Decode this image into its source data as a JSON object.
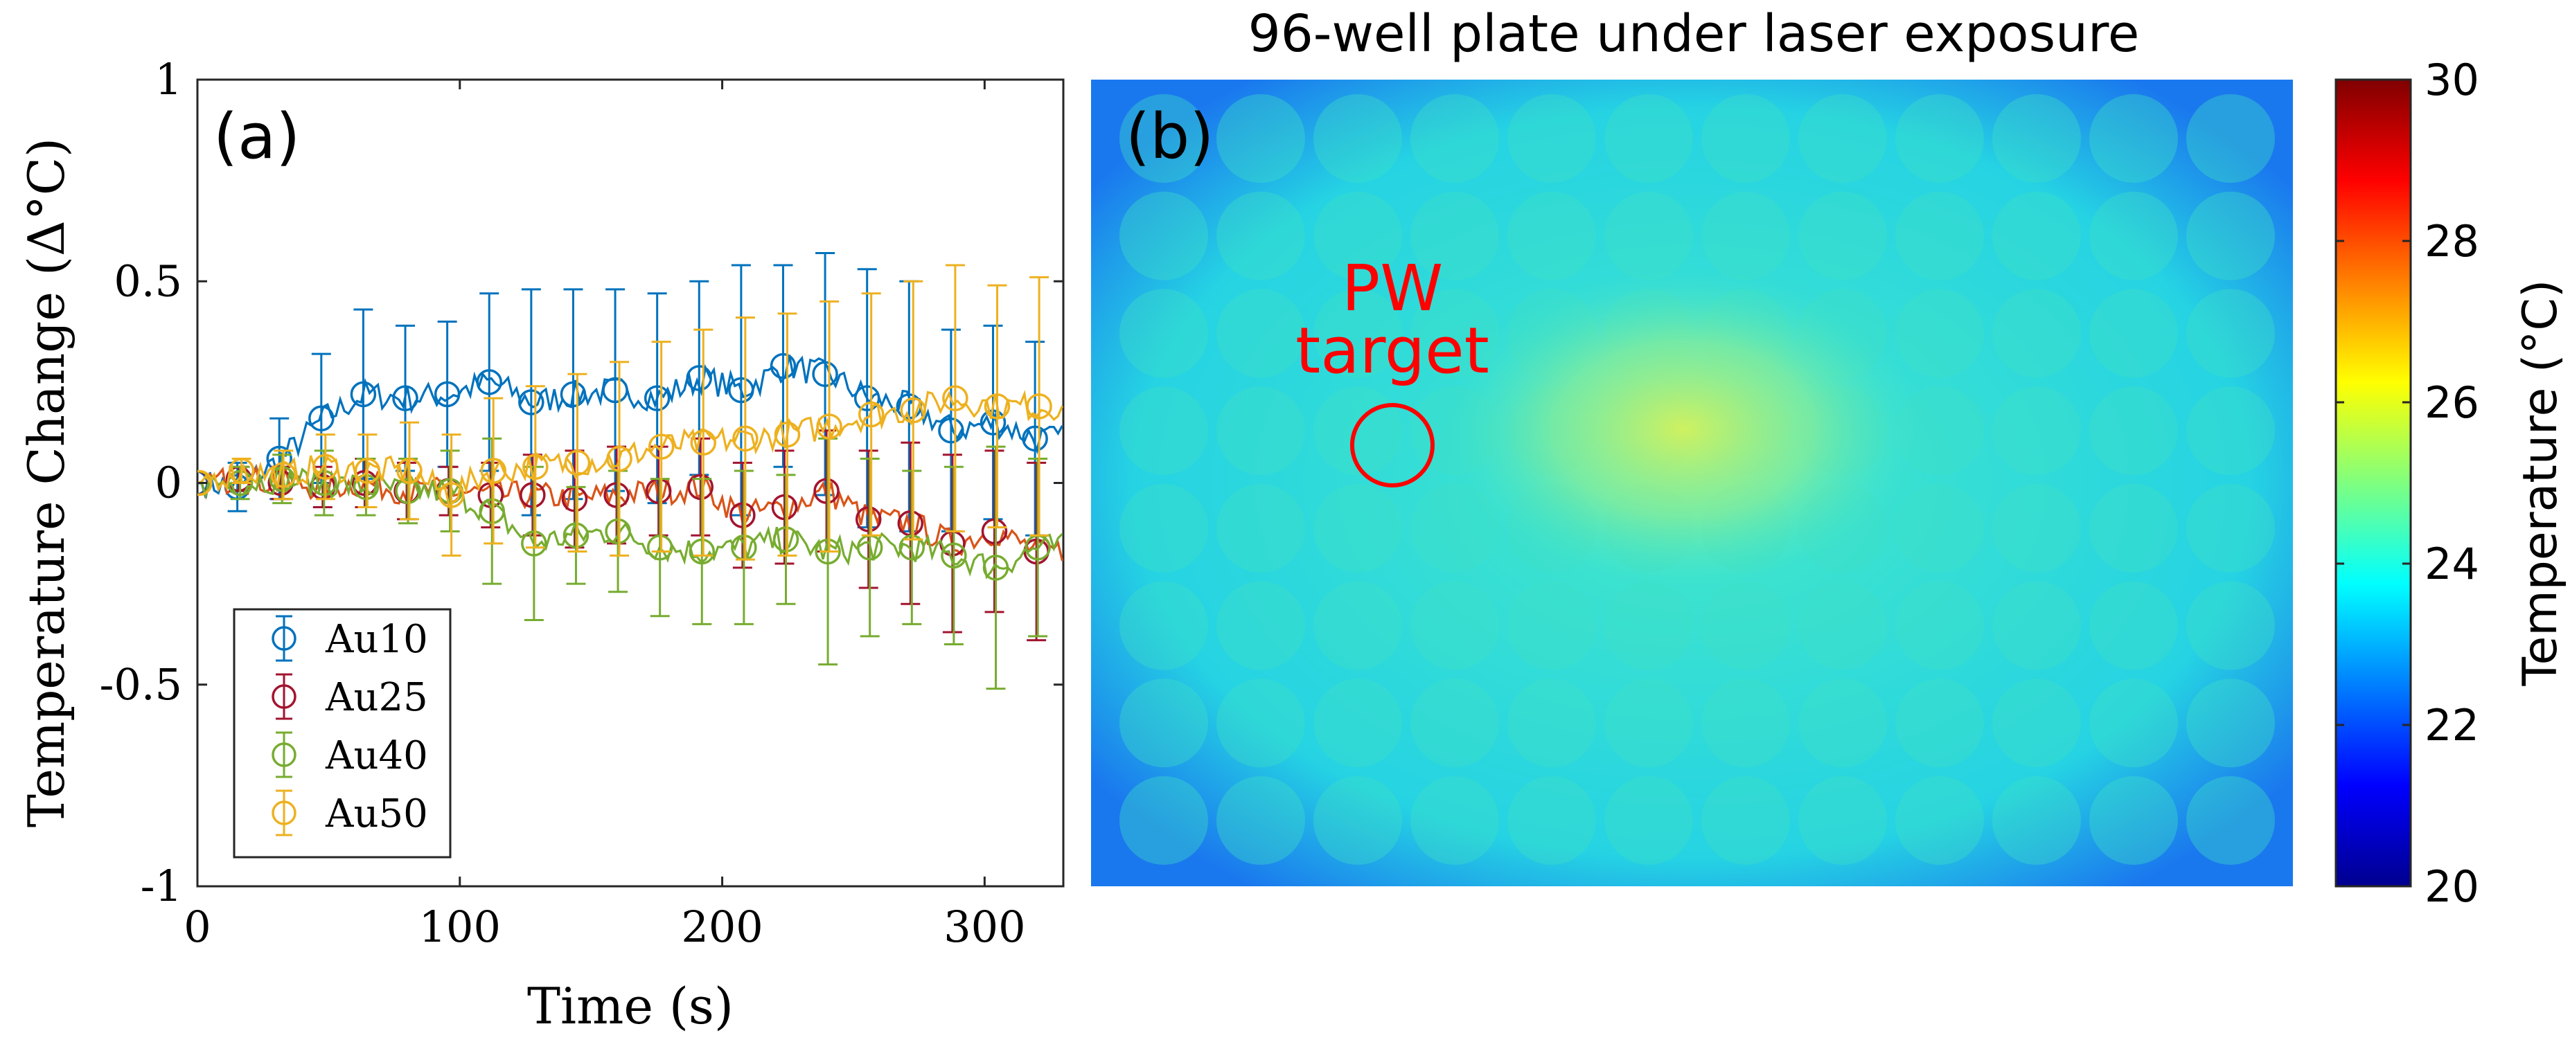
{
  "chart_data": [
    {
      "type": "line",
      "panel_label": "(a)",
      "xlabel": "Time (s)",
      "ylabel": "Temperature Change (Δ°C)",
      "xlim": [
        0,
        330
      ],
      "ylim": [
        -1,
        1
      ],
      "xticks": [
        0,
        100,
        200,
        300
      ],
      "xtick_labels": [
        "0",
        "100",
        "200",
        "300"
      ],
      "yticks": [
        -1,
        -0.5,
        0,
        0.5,
        1
      ],
      "ytick_labels": [
        "-1",
        "-0.5",
        "0",
        "0.5",
        "1"
      ],
      "grid": false,
      "legend_position": "bottom-left",
      "x": [
        0,
        16,
        32,
        48,
        64,
        80,
        96,
        112,
        128,
        144,
        160,
        176,
        192,
        208,
        224,
        240,
        256,
        272,
        288,
        304,
        320
      ],
      "series": [
        {
          "name": "Au10",
          "color": "#0072bd",
          "values": [
            0.0,
            -0.01,
            0.06,
            0.16,
            0.22,
            0.21,
            0.22,
            0.25,
            0.2,
            0.22,
            0.23,
            0.21,
            0.26,
            0.23,
            0.29,
            0.27,
            0.21,
            0.19,
            0.13,
            0.15,
            0.11
          ],
          "errors": [
            0.0,
            0.06,
            0.1,
            0.16,
            0.21,
            0.18,
            0.18,
            0.22,
            0.28,
            0.26,
            0.25,
            0.26,
            0.24,
            0.31,
            0.25,
            0.3,
            0.32,
            0.31,
            0.25,
            0.24,
            0.24
          ]
        },
        {
          "name": "Au25",
          "color": "#d95319",
          "marker_color": "#a2142f",
          "values": [
            0.0,
            0.01,
            0.0,
            -0.01,
            0.0,
            -0.02,
            -0.02,
            -0.03,
            -0.03,
            -0.04,
            -0.03,
            -0.02,
            -0.01,
            -0.08,
            -0.06,
            -0.02,
            -0.09,
            -0.1,
            -0.15,
            -0.12,
            -0.17
          ],
          "errors": [
            0.0,
            0.03,
            0.04,
            0.05,
            0.06,
            0.07,
            0.06,
            0.08,
            0.1,
            0.12,
            0.12,
            0.11,
            0.12,
            0.13,
            0.14,
            0.15,
            0.17,
            0.2,
            0.22,
            0.2,
            0.22
          ]
        },
        {
          "name": "Au40",
          "color": "#77ac30",
          "values": [
            0.0,
            0.0,
            0.01,
            0.0,
            -0.01,
            -0.02,
            -0.02,
            -0.07,
            -0.15,
            -0.13,
            -0.12,
            -0.16,
            -0.17,
            -0.16,
            -0.14,
            -0.17,
            -0.16,
            -0.16,
            -0.18,
            -0.21,
            -0.16
          ],
          "errors": [
            0.0,
            0.04,
            0.06,
            0.08,
            0.07,
            0.08,
            0.1,
            0.18,
            0.19,
            0.12,
            0.15,
            0.17,
            0.18,
            0.19,
            0.16,
            0.28,
            0.22,
            0.19,
            0.22,
            0.3,
            0.22
          ]
        },
        {
          "name": "Au50",
          "color": "#edb120",
          "values": [
            0.0,
            0.03,
            0.02,
            0.04,
            0.03,
            0.03,
            -0.03,
            0.03,
            0.04,
            0.05,
            0.06,
            0.09,
            0.1,
            0.11,
            0.12,
            0.14,
            0.17,
            0.18,
            0.21,
            0.19,
            0.19
          ],
          "errors": [
            0.0,
            0.03,
            0.06,
            0.08,
            0.09,
            0.12,
            0.15,
            0.18,
            0.2,
            0.22,
            0.24,
            0.26,
            0.28,
            0.3,
            0.3,
            0.31,
            0.3,
            0.32,
            0.33,
            0.3,
            0.32
          ]
        }
      ]
    },
    {
      "type": "heatmap",
      "panel_label": "(b)",
      "title": "96-well plate under laser exposure",
      "annotation": "PW target",
      "colorbar_label": "Temperature (°C)",
      "colorbar_range": [
        20,
        30
      ],
      "colorbar_ticks": [
        20,
        22,
        24,
        26,
        28,
        30
      ],
      "colorbar_tick_labels": [
        "20",
        "22",
        "24",
        "26",
        "28",
        "30"
      ],
      "rows": 8,
      "columns": 12,
      "background_temperature": 22.6,
      "well_temperature": 24.0,
      "hot_spot_temperature": 25.3,
      "target_well": {
        "row": 4,
        "column": 3
      },
      "annotation_color": "#ff0000"
    }
  ]
}
